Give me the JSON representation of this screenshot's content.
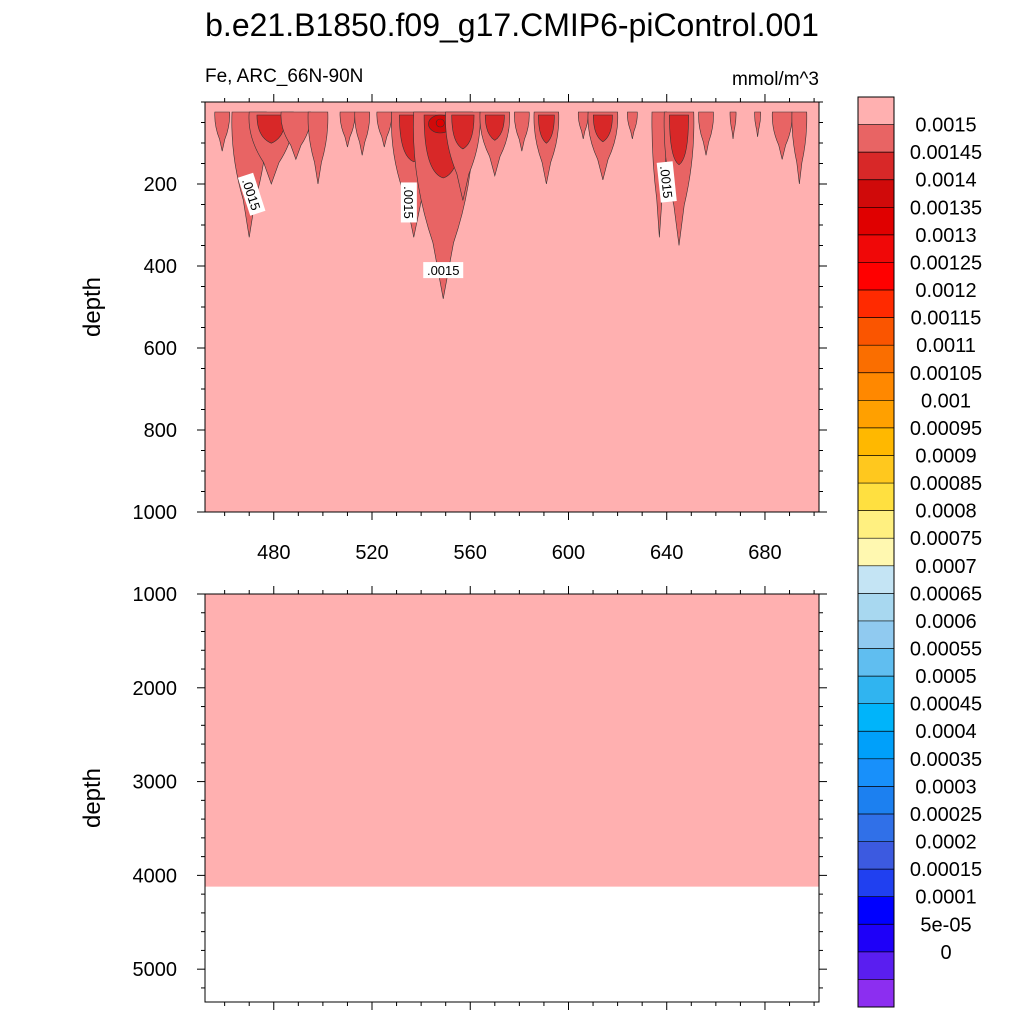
{
  "chart_data": {
    "type": "contour",
    "title": "b.e21.B1850.f09_g17.CMIP6-piControl.001",
    "variable_label": "Fe, ARC_66N-90N",
    "units": "mmol/m^3",
    "xlim": [
      452,
      702
    ],
    "x_ticks": [
      "480",
      "520",
      "560",
      "600",
      "640",
      "680"
    ],
    "x_tick_values": [
      480,
      520,
      560,
      600,
      640,
      680
    ],
    "panels": [
      {
        "name": "upper",
        "ylabel": "depth",
        "ylim": [
          1000,
          0
        ],
        "y_ticks": [
          "200",
          "400",
          "600",
          "800",
          "1000"
        ],
        "y_tick_values": [
          200,
          400,
          600,
          800,
          1000
        ],
        "background_value": 0.0015,
        "contour_labels": [
          {
            "text": ".0015",
            "x": 471,
            "y": 225,
            "angle": 72
          },
          {
            "text": ".0015",
            "x": 535,
            "y": 245,
            "angle": 90
          },
          {
            "text": ".0015",
            "x": 640,
            "y": 195,
            "angle": 84
          },
          {
            "text": ".0015",
            "x": 549,
            "y": 410,
            "angle": 0
          }
        ],
        "features": [
          {
            "x": 459,
            "half_width": 3,
            "bottom": 120,
            "value": 0.00145
          },
          {
            "x": 470,
            "half_width": 7,
            "bottom": 330,
            "value": 0.00145
          },
          {
            "x": 479,
            "half_width": 9,
            "bottom": 200,
            "value": 0.0014
          },
          {
            "x": 489,
            "half_width": 6,
            "bottom": 140,
            "value": 0.00145
          },
          {
            "x": 498,
            "half_width": 4,
            "bottom": 200,
            "value": 0.00145
          },
          {
            "x": 510,
            "half_width": 3,
            "bottom": 110,
            "value": 0.00145
          },
          {
            "x": 516,
            "half_width": 3,
            "bottom": 130,
            "value": 0.00145
          },
          {
            "x": 525,
            "half_width": 3,
            "bottom": 110,
            "value": 0.00145
          },
          {
            "x": 537,
            "half_width": 9,
            "bottom": 330,
            "value": 0.0014
          },
          {
            "x": 549,
            "half_width": 12,
            "bottom": 480,
            "value": 0.0013
          },
          {
            "x": 557,
            "half_width": 7,
            "bottom": 240,
            "value": 0.0014
          },
          {
            "x": 570,
            "half_width": 6,
            "bottom": 180,
            "value": 0.0014
          },
          {
            "x": 581,
            "half_width": 3,
            "bottom": 120,
            "value": 0.00145
          },
          {
            "x": 591,
            "half_width": 5,
            "bottom": 200,
            "value": 0.0014
          },
          {
            "x": 606,
            "half_width": 2,
            "bottom": 90,
            "value": 0.00145
          },
          {
            "x": 614,
            "half_width": 6,
            "bottom": 190,
            "value": 0.0014
          },
          {
            "x": 626,
            "half_width": 2,
            "bottom": 90,
            "value": 0.00145
          },
          {
            "x": 637,
            "half_width": 3,
            "bottom": 330,
            "value": 0.00145
          },
          {
            "x": 645,
            "half_width": 6,
            "bottom": 350,
            "value": 0.0014
          },
          {
            "x": 656,
            "half_width": 3,
            "bottom": 130,
            "value": 0.00145
          },
          {
            "x": 667,
            "half_width": 1,
            "bottom": 90,
            "value": 0.00145
          },
          {
            "x": 677,
            "half_width": 1,
            "bottom": 85,
            "value": 0.00145
          },
          {
            "x": 687,
            "half_width": 4,
            "bottom": 140,
            "value": 0.00145
          },
          {
            "x": 694,
            "half_width": 3,
            "bottom": 200,
            "value": 0.00145
          }
        ]
      },
      {
        "name": "lower",
        "ylabel": "depth",
        "ylim": [
          1000,
          5350
        ],
        "y_ticks": [
          "1000",
          "2000",
          "3000",
          "4000",
          "5000"
        ],
        "y_tick_values": [
          1000,
          2000,
          3000,
          4000,
          5000
        ],
        "filled_bottom": 4120,
        "background_value": 0.0015
      }
    ],
    "colorbar": {
      "labels": [
        "0.0015",
        "0.00145",
        "0.0014",
        "0.00135",
        "0.0013",
        "0.00125",
        "0.0012",
        "0.00115",
        "0.0011",
        "0.00105",
        "0.001",
        "0.00095",
        "0.0009",
        "0.00085",
        "0.0008",
        "0.00075",
        "0.0007",
        "0.00065",
        "0.0006",
        "0.00055",
        "0.0005",
        "0.00045",
        "0.0004",
        "0.00035",
        "0.0003",
        "0.00025",
        "0.0002",
        "0.00015",
        "0.0001",
        "5e-05",
        "0"
      ],
      "colors": [
        "#FFB0B0",
        "#E86464",
        "#D82828",
        "#D00A0A",
        "#E00000",
        "#F00808",
        "#FF0000",
        "#FF2A00",
        "#FA5500",
        "#FA6E00",
        "#FF8800",
        "#FFA000",
        "#FFB800",
        "#FFC81E",
        "#FFE040",
        "#FFF080",
        "#FFF8B0",
        "#C4E4F4",
        "#A8D8F0",
        "#90CAF0",
        "#60BEF0",
        "#30B4F0",
        "#00B4FA",
        "#00A0FA",
        "#1890FA",
        "#1C80F0",
        "#3070E8",
        "#3C5AE0",
        "#2040F0",
        "#0000FF",
        "#1E00F8",
        "#5A1EF0",
        "#8C2EF0"
      ]
    }
  }
}
